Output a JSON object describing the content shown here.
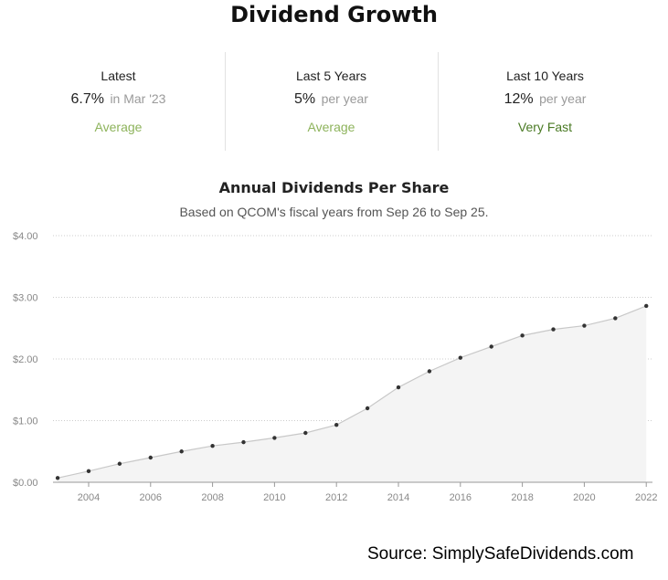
{
  "title": "Dividend Growth",
  "stats": [
    {
      "label": "Latest",
      "value": "6.7%",
      "unit": "in Mar '23",
      "rating": "Average",
      "rating_color": "#8db35b"
    },
    {
      "label": "Last 5 Years",
      "value": "5%",
      "unit": "per year",
      "rating": "Average",
      "rating_color": "#8db35b"
    },
    {
      "label": "Last 10 Years",
      "value": "12%",
      "unit": "per year",
      "rating": "Very Fast",
      "rating_color": "#4a7a24"
    }
  ],
  "chart_data": {
    "type": "area",
    "title": "Annual Dividends Per Share",
    "subtitle": "Based on QCOM's fiscal years from Sep 26 to Sep 25.",
    "x": [
      2003,
      2004,
      2005,
      2006,
      2007,
      2008,
      2009,
      2010,
      2011,
      2012,
      2013,
      2014,
      2015,
      2016,
      2017,
      2018,
      2019,
      2020,
      2021,
      2022
    ],
    "series": [
      {
        "values": [
          0.07,
          0.18,
          0.3,
          0.4,
          0.5,
          0.59,
          0.65,
          0.72,
          0.8,
          0.93,
          1.2,
          1.54,
          1.8,
          2.02,
          2.2,
          2.38,
          2.48,
          2.54,
          2.66,
          2.86
        ]
      }
    ],
    "y_tick_labels": [
      "$0.00",
      "$1.00",
      "$2.00",
      "$3.00",
      "$4.00"
    ],
    "y_ticks": [
      0,
      1,
      2,
      3,
      4
    ],
    "x_tick_labels": [
      "2004",
      "2006",
      "2008",
      "2010",
      "2012",
      "2014",
      "2016",
      "2018",
      "2020",
      "2022"
    ],
    "x_ticks": [
      2004,
      2006,
      2008,
      2010,
      2012,
      2014,
      2016,
      2018,
      2020,
      2022
    ],
    "ylim": [
      0,
      4
    ],
    "xlim": [
      2002.85,
      2022.2
    ],
    "grid": true,
    "colors": {
      "line": "#c8c8c8",
      "fill": "#f4f4f4",
      "point": "#333333",
      "grid": "#cccccc",
      "axis": "#999999",
      "tick_text": "#888888"
    }
  },
  "source": "Source: SimplySafeDividends.com"
}
